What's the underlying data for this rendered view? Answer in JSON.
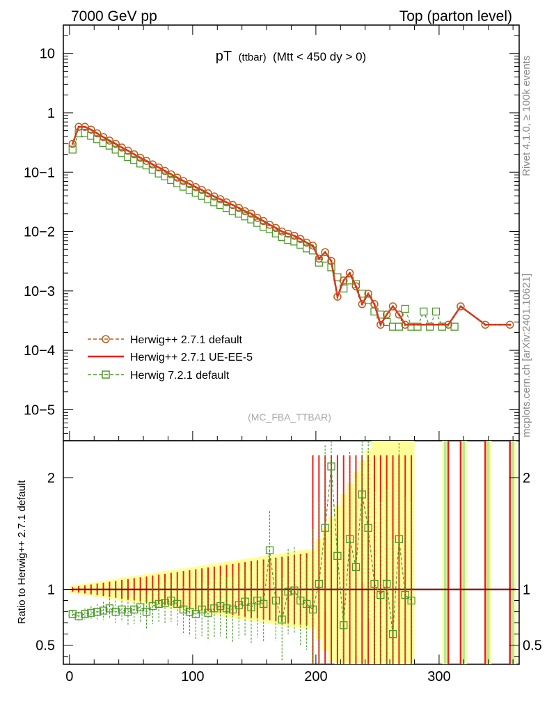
{
  "header": {
    "left": "7000 GeV pp",
    "right": "Top (parton level)"
  },
  "title": {
    "main": "pT",
    "sub": "(ttbar)",
    "cut": "(Mtt < 450 dy > 0)"
  },
  "side": {
    "rivet": "Rivet 4.1.0, ≥ 100k events",
    "mcplots": "mcplots.cern.ch [arXiv:2401.10621]"
  },
  "analysis_tag": "(MC_FBA_TTBAR)",
  "legend": [
    {
      "label": "Herwig++ 2.7.1 default",
      "color": "#b85c1a",
      "style": "dashed",
      "marker": "circle"
    },
    {
      "label": "Herwig++ 2.7.1 UE-EE-5",
      "color": "#e8201a",
      "style": "solid",
      "marker": "none"
    },
    {
      "label": "Herwig 7.2.1 default",
      "color": "#4a9a2a",
      "style": "dashed",
      "marker": "square"
    }
  ],
  "chart_data": [
    {
      "type": "line",
      "panel": "main",
      "yscale": "log",
      "xlim": [
        -5,
        365
      ],
      "ylim": [
        3e-06,
        30
      ],
      "ytick_labels": [
        "10",
        "1",
        "10−1",
        "10−2",
        "10−3",
        "10−4",
        "10−5"
      ],
      "ytick_values": [
        10,
        1,
        0.1,
        0.01,
        0.001,
        0.0001,
        1e-05
      ],
      "series": [
        {
          "name": "Herwig++ 2.7.1 default",
          "x": [
            2.5,
            7.5,
            12.5,
            17.5,
            22.5,
            27.5,
            32.5,
            37.5,
            42.5,
            47.5,
            52.5,
            57.5,
            62.5,
            67.5,
            72.5,
            77.5,
            82.5,
            87.5,
            92.5,
            97.5,
            102.5,
            107.5,
            112.5,
            117.5,
            122.5,
            127.5,
            132.5,
            137.5,
            142.5,
            147.5,
            152.5,
            157.5,
            162.5,
            167.5,
            172.5,
            177.5,
            182.5,
            187.5,
            192.5,
            197.5,
            202.5,
            207.5,
            212.5,
            217.5,
            222.5,
            227.5,
            232.5,
            237.5,
            242.5,
            247.5,
            252.5,
            257.5,
            262.5,
            267.5,
            272.5,
            307.5,
            317.5,
            337.5,
            357.5
          ],
          "y": [
            0.3,
            0.58,
            0.58,
            0.52,
            0.45,
            0.39,
            0.34,
            0.3,
            0.26,
            0.23,
            0.2,
            0.175,
            0.155,
            0.135,
            0.12,
            0.105,
            0.092,
            0.081,
            0.071,
            0.063,
            0.056,
            0.05,
            0.044,
            0.039,
            0.035,
            0.031,
            0.028,
            0.025,
            0.022,
            0.02,
            0.017,
            0.015,
            0.013,
            0.0115,
            0.01,
            0.0092,
            0.0085,
            0.0075,
            0.0065,
            0.0058,
            0.0035,
            0.0045,
            0.0032,
            0.0008,
            0.0015,
            0.002,
            0.0012,
            0.0006,
            0.0009,
            0.0006,
            0.00027,
            0.0004,
            0.00055,
            0.0004,
            0.00027,
            0.00027,
            0.00055,
            0.00027,
            0.00027
          ]
        },
        {
          "name": "Herwig++ 2.7.1 UE-EE-5",
          "x": [
            2.5,
            7.5,
            12.5,
            17.5,
            22.5,
            27.5,
            32.5,
            37.5,
            42.5,
            47.5,
            52.5,
            57.5,
            62.5,
            67.5,
            72.5,
            77.5,
            82.5,
            87.5,
            92.5,
            97.5,
            102.5,
            107.5,
            112.5,
            117.5,
            122.5,
            127.5,
            132.5,
            137.5,
            142.5,
            147.5,
            152.5,
            157.5,
            162.5,
            167.5,
            172.5,
            177.5,
            182.5,
            187.5,
            192.5,
            197.5,
            202.5,
            207.5,
            212.5,
            217.5,
            222.5,
            227.5,
            232.5,
            237.5,
            242.5,
            247.5,
            252.5,
            257.5,
            262.5,
            267.5,
            272.5,
            307.5,
            317.5,
            337.5,
            357.5
          ],
          "y": [
            0.3,
            0.58,
            0.58,
            0.52,
            0.45,
            0.39,
            0.34,
            0.3,
            0.26,
            0.23,
            0.2,
            0.175,
            0.155,
            0.135,
            0.12,
            0.105,
            0.092,
            0.081,
            0.071,
            0.063,
            0.056,
            0.05,
            0.044,
            0.039,
            0.035,
            0.031,
            0.028,
            0.025,
            0.022,
            0.02,
            0.017,
            0.015,
            0.013,
            0.0115,
            0.01,
            0.0092,
            0.0085,
            0.0075,
            0.0065,
            0.0058,
            0.0035,
            0.0045,
            0.0032,
            0.0008,
            0.0015,
            0.002,
            0.0012,
            0.0006,
            0.0009,
            0.0006,
            0.00027,
            0.0004,
            0.00055,
            0.0004,
            0.00027,
            0.00027,
            0.00055,
            0.00027,
            0.00027
          ]
        },
        {
          "name": "Herwig 7.2.1 default",
          "x": [
            2.5,
            7.5,
            12.5,
            17.5,
            22.5,
            27.5,
            32.5,
            37.5,
            42.5,
            47.5,
            52.5,
            57.5,
            62.5,
            67.5,
            72.5,
            77.5,
            82.5,
            87.5,
            92.5,
            97.5,
            102.5,
            107.5,
            112.5,
            117.5,
            122.5,
            127.5,
            132.5,
            137.5,
            142.5,
            147.5,
            152.5,
            157.5,
            162.5,
            167.5,
            172.5,
            177.5,
            182.5,
            187.5,
            192.5,
            197.5,
            202.5,
            207.5,
            212.5,
            217.5,
            222.5,
            227.5,
            232.5,
            237.5,
            242.5,
            247.5,
            252.5,
            257.5,
            262.5,
            267.5,
            272.5,
            277.5,
            282.5,
            287.5,
            292.5,
            297.5,
            302.5,
            312.5
          ],
          "y": [
            0.24,
            0.45,
            0.46,
            0.41,
            0.36,
            0.31,
            0.28,
            0.24,
            0.21,
            0.18,
            0.16,
            0.14,
            0.13,
            0.11,
            0.095,
            0.085,
            0.074,
            0.065,
            0.057,
            0.05,
            0.045,
            0.04,
            0.035,
            0.031,
            0.028,
            0.025,
            0.022,
            0.02,
            0.018,
            0.016,
            0.014,
            0.012,
            0.011,
            0.0093,
            0.0081,
            0.0072,
            0.0068,
            0.006,
            0.0052,
            0.0048,
            0.003,
            0.0035,
            0.0025,
            0.0017,
            0.0011,
            0.0015,
            0.0013,
            0.0009,
            0.0007,
            0.00045,
            0.0004,
            0.0003,
            0.00025,
            0.00025,
            0.0005,
            0.00025,
            0.00025,
            0.00045,
            0.00025,
            0.00045,
            0.00025,
            0.00025
          ]
        }
      ]
    },
    {
      "type": "line",
      "panel": "ratio",
      "ylabel": "Ratio to Herwig++ 2.7.1 default",
      "xlim": [
        -5,
        365
      ],
      "ylim": [
        0.33,
        2.33
      ],
      "ytick_labels": [
        "0.5",
        "1",
        "2"
      ],
      "ytick_values": [
        0.5,
        1,
        2
      ],
      "xtick_labels": [
        "0",
        "100",
        "200",
        "300"
      ],
      "xtick_values": [
        0,
        100,
        200,
        300
      ],
      "reference": 1.0,
      "series": [
        {
          "name": "Herwig 7.2.1 default / Herwig++ 2.7.1 default",
          "x": [
            2.5,
            7.5,
            12.5,
            17.5,
            22.5,
            27.5,
            32.5,
            37.5,
            42.5,
            47.5,
            52.5,
            57.5,
            62.5,
            67.5,
            72.5,
            77.5,
            82.5,
            87.5,
            92.5,
            97.5,
            102.5,
            107.5,
            112.5,
            117.5,
            122.5,
            127.5,
            132.5,
            137.5,
            142.5,
            147.5,
            152.5,
            157.5,
            162.5,
            167.5,
            172.5,
            177.5,
            182.5,
            187.5,
            192.5,
            197.5,
            202.5,
            207.5,
            212.5,
            217.5,
            222.5,
            227.5,
            232.5,
            237.5,
            242.5,
            247.5,
            252.5,
            257.5,
            262.5,
            267.5,
            272.5,
            277.5
          ],
          "y": [
            0.78,
            0.76,
            0.78,
            0.79,
            0.8,
            0.81,
            0.83,
            0.8,
            0.82,
            0.8,
            0.82,
            0.84,
            0.8,
            0.85,
            0.87,
            0.88,
            0.9,
            0.87,
            0.82,
            0.8,
            0.78,
            0.82,
            0.79,
            0.83,
            0.85,
            0.83,
            0.82,
            0.86,
            0.89,
            0.84,
            0.9,
            0.87,
            1.35,
            0.9,
            0.73,
            0.98,
            0.99,
            0.9,
            0.87,
            0.82,
            1.05,
            1.55,
            2.1,
            1.3,
            0.68,
            1.45,
            1.2,
            1.85,
            1.55,
            1.05,
            0.95,
            1.05,
            0.6,
            1.45,
            0.95,
            0.9
          ]
        },
        {
          "name": "Herwig++ 2.7.1 UE-EE-5 / Herwig++ 2.7.1 default",
          "x": [
            2.5,
            362.5
          ],
          "y": [
            1.0,
            1.0
          ]
        }
      ]
    }
  ]
}
